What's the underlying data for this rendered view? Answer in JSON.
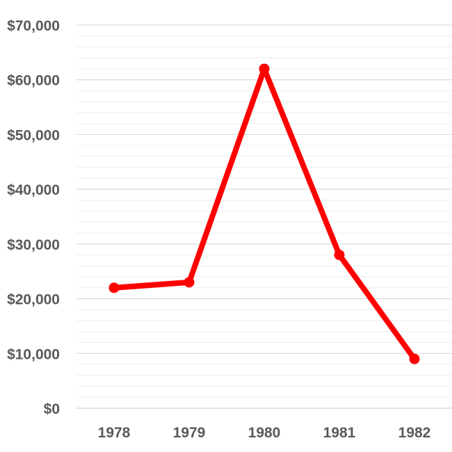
{
  "chart_data": {
    "type": "line",
    "title": "",
    "xlabel": "",
    "ylabel": "",
    "categories": [
      "1978",
      "1979",
      "1980",
      "1981",
      "1982"
    ],
    "series": [
      {
        "values": [
          22000,
          23000,
          62000,
          28000,
          9000
        ]
      }
    ],
    "ylim": [
      0,
      70000
    ],
    "y_major_step": 10000,
    "y_minor_step": 2000,
    "y_tick_labels": [
      "$0",
      "$10,000",
      "$20,000",
      "$30,000",
      "$40,000",
      "$50,000",
      "$60,000",
      "$70,000"
    ],
    "grid": true,
    "legend": "none",
    "line_color": "#ff0000",
    "grid_color": "#d9d9d9",
    "label_color": "#595959"
  }
}
